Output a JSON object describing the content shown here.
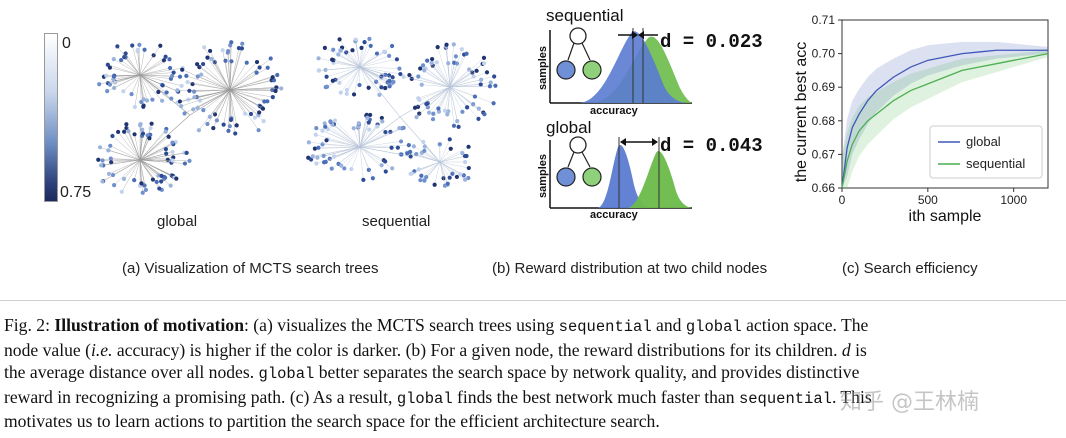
{
  "panel_a": {
    "colorbar": {
      "max_label": "0",
      "min_label": "0.75"
    },
    "tree_global_label": "global",
    "tree_sequential_label": "sequential",
    "caption": "(a) Visualization of MCTS search trees"
  },
  "panel_b": {
    "top": {
      "title": "sequential",
      "d_text": "d = 0.023",
      "ylabel": "samples",
      "xlabel": "accuracy"
    },
    "bottom": {
      "title": "global",
      "d_text": "d = 0.043",
      "ylabel": "samples",
      "xlabel": "accuracy"
    },
    "caption": "(b) Reward distribution at two child nodes"
  },
  "panel_c": {
    "caption": "(c) Search efficiency"
  },
  "chart_data": {
    "type": "line",
    "title": "",
    "xlabel": "ith sample",
    "ylabel": "the current best acc",
    "xlim": [
      0,
      1200
    ],
    "ylim": [
      0.66,
      0.71
    ],
    "xticks": [
      "0",
      "500",
      "1000"
    ],
    "yticks": [
      "0.66",
      "0.67",
      "0.68",
      "0.69",
      "0.70",
      "0.71"
    ],
    "legend_position": "lower-right",
    "series": [
      {
        "name": "global",
        "color": "#3f58b8",
        "x": [
          0,
          30,
          60,
          100,
          150,
          200,
          250,
          300,
          400,
          500,
          600,
          700,
          800,
          900,
          1000,
          1100,
          1200
        ],
        "y": [
          0.66,
          0.672,
          0.678,
          0.682,
          0.686,
          0.689,
          0.691,
          0.693,
          0.696,
          0.698,
          0.699,
          0.7,
          0.7005,
          0.701,
          0.701,
          0.701,
          0.701
        ]
      },
      {
        "name": "sequential",
        "color": "#4caf50",
        "x": [
          0,
          30,
          60,
          100,
          150,
          200,
          250,
          300,
          400,
          500,
          600,
          700,
          800,
          900,
          1000,
          1100,
          1200
        ],
        "y": [
          0.66,
          0.668,
          0.673,
          0.677,
          0.68,
          0.682,
          0.684,
          0.686,
          0.689,
          0.691,
          0.693,
          0.695,
          0.696,
          0.697,
          0.698,
          0.699,
          0.7
        ]
      }
    ]
  },
  "caption": {
    "l1_fig": "Fig. 2: ",
    "l1_bold": "Illustration of motivation",
    "l1_a": ": (a) visualizes the MCTS search trees using ",
    "l1_code1": "sequential",
    "l1_b": " and ",
    "l1_code2": "global",
    "l1_c": " action space. The",
    "l2_a": "node value (",
    "l2_ie": "i.e.",
    "l2_b": " accuracy) is higher if the color is darker. (b) For a given node, the reward distributions for its children. ",
    "l2_d": "d",
    "l2_c": " is",
    "l3_a": "the average distance over all nodes. ",
    "l3_code": "global",
    "l3_b": " better separates the search space by network quality, and provides distinctive",
    "l4_a": "reward in recognizing a promising path. (c) As a result, ",
    "l4_code1": "global",
    "l4_b": " finds the best network much faster than ",
    "l4_code2": "sequential",
    "l4_c": ". This",
    "l5": "motivates us to learn actions to partition the search space for the efficient architecture search."
  },
  "watermark": "知乎 @王林楠"
}
